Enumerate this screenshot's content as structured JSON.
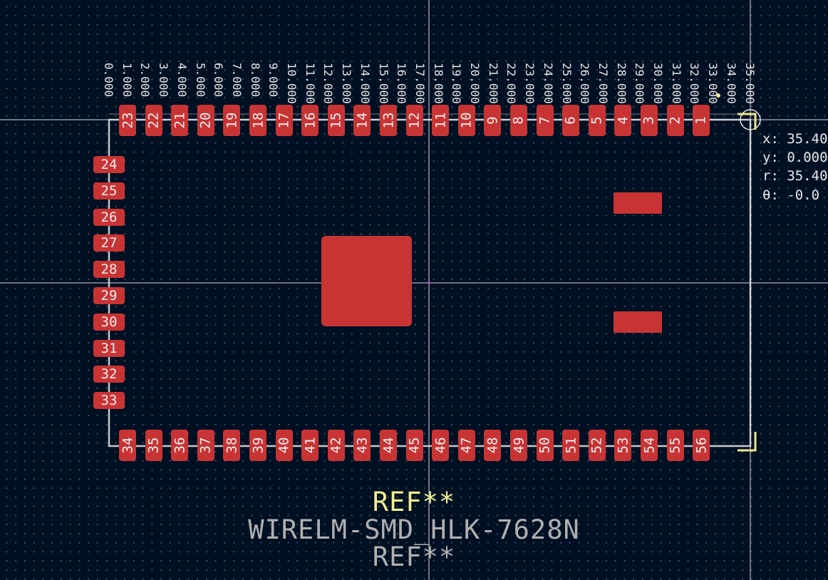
{
  "colors": {
    "background": "#001023",
    "pad": "#c83434",
    "crosshair": "#d8d8e0",
    "outline": "#c8c8c8",
    "courtyard": "#f0e68c",
    "ref_text": "#f0f090",
    "value_text": "#b0b0b0"
  },
  "ruler": {
    "labels": [
      "0.000",
      "1.000",
      "2.000",
      "3.000",
      "4.000",
      "5.000",
      "6.000",
      "7.000",
      "8.000",
      "9.000",
      "10.000",
      "11.000",
      "12.000",
      "13.000",
      "14.000",
      "15.000",
      "16.000",
      "17.000",
      "18.000",
      "19.000",
      "20.000",
      "21.000",
      "22.000",
      "23.000",
      "24.000",
      "25.000",
      "26.000",
      "27.000",
      "28.000",
      "29.000",
      "30.000",
      "31.000",
      "32.000",
      "33.000",
      "34.000",
      "35.000"
    ]
  },
  "readout": {
    "x": "x: 35.400",
    "y": "y: 0.000",
    "r": "r: 35.400",
    "theta": "θ: -0.0"
  },
  "pads": {
    "top": [
      "23",
      "22",
      "21",
      "20",
      "19",
      "18",
      "17",
      "16",
      "15",
      "14",
      "13",
      "12",
      "11",
      "10",
      "9",
      "8",
      "7",
      "6",
      "5",
      "4",
      "3",
      "2",
      "1"
    ],
    "left": [
      "24",
      "25",
      "26",
      "27",
      "28",
      "29",
      "30",
      "31",
      "32",
      "33"
    ],
    "bottom": [
      "34",
      "35",
      "36",
      "37",
      "38",
      "39",
      "40",
      "41",
      "42",
      "43",
      "44",
      "45",
      "46",
      "47",
      "48",
      "49",
      "50",
      "51",
      "52",
      "53",
      "54",
      "55",
      "56"
    ]
  },
  "footprint": {
    "reference_top": "REF**",
    "value": "WIRELM-SMD_HLK-7628N",
    "reference_bottom": "REF**"
  }
}
